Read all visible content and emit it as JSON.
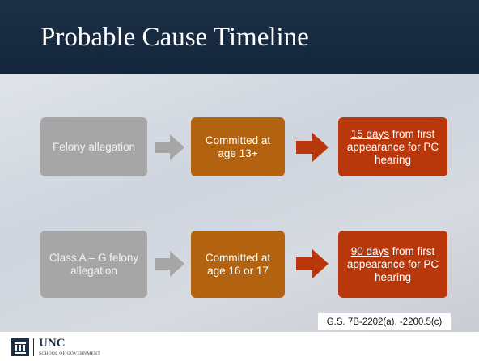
{
  "header": {
    "title": "Probable Cause Timeline"
  },
  "rows": [
    {
      "allegation": "Felony allegation",
      "commitment": "Committed at age 13+",
      "deadline": {
        "emphasis": "15 days",
        "rest": "from first appearance for PC hearing"
      }
    },
    {
      "allegation": "Class A – G felony allegation",
      "commitment": "Committed at age 16 or 17",
      "deadline": {
        "emphasis": "90 days",
        "rest": "from first appearance for PC hearing"
      }
    }
  ],
  "citation": "G.S. 7B-2202(a), -2200.5(c)",
  "footer": {
    "logo": "UNC",
    "subtitle": "SCHOOL OF GOVERNMENT"
  }
}
